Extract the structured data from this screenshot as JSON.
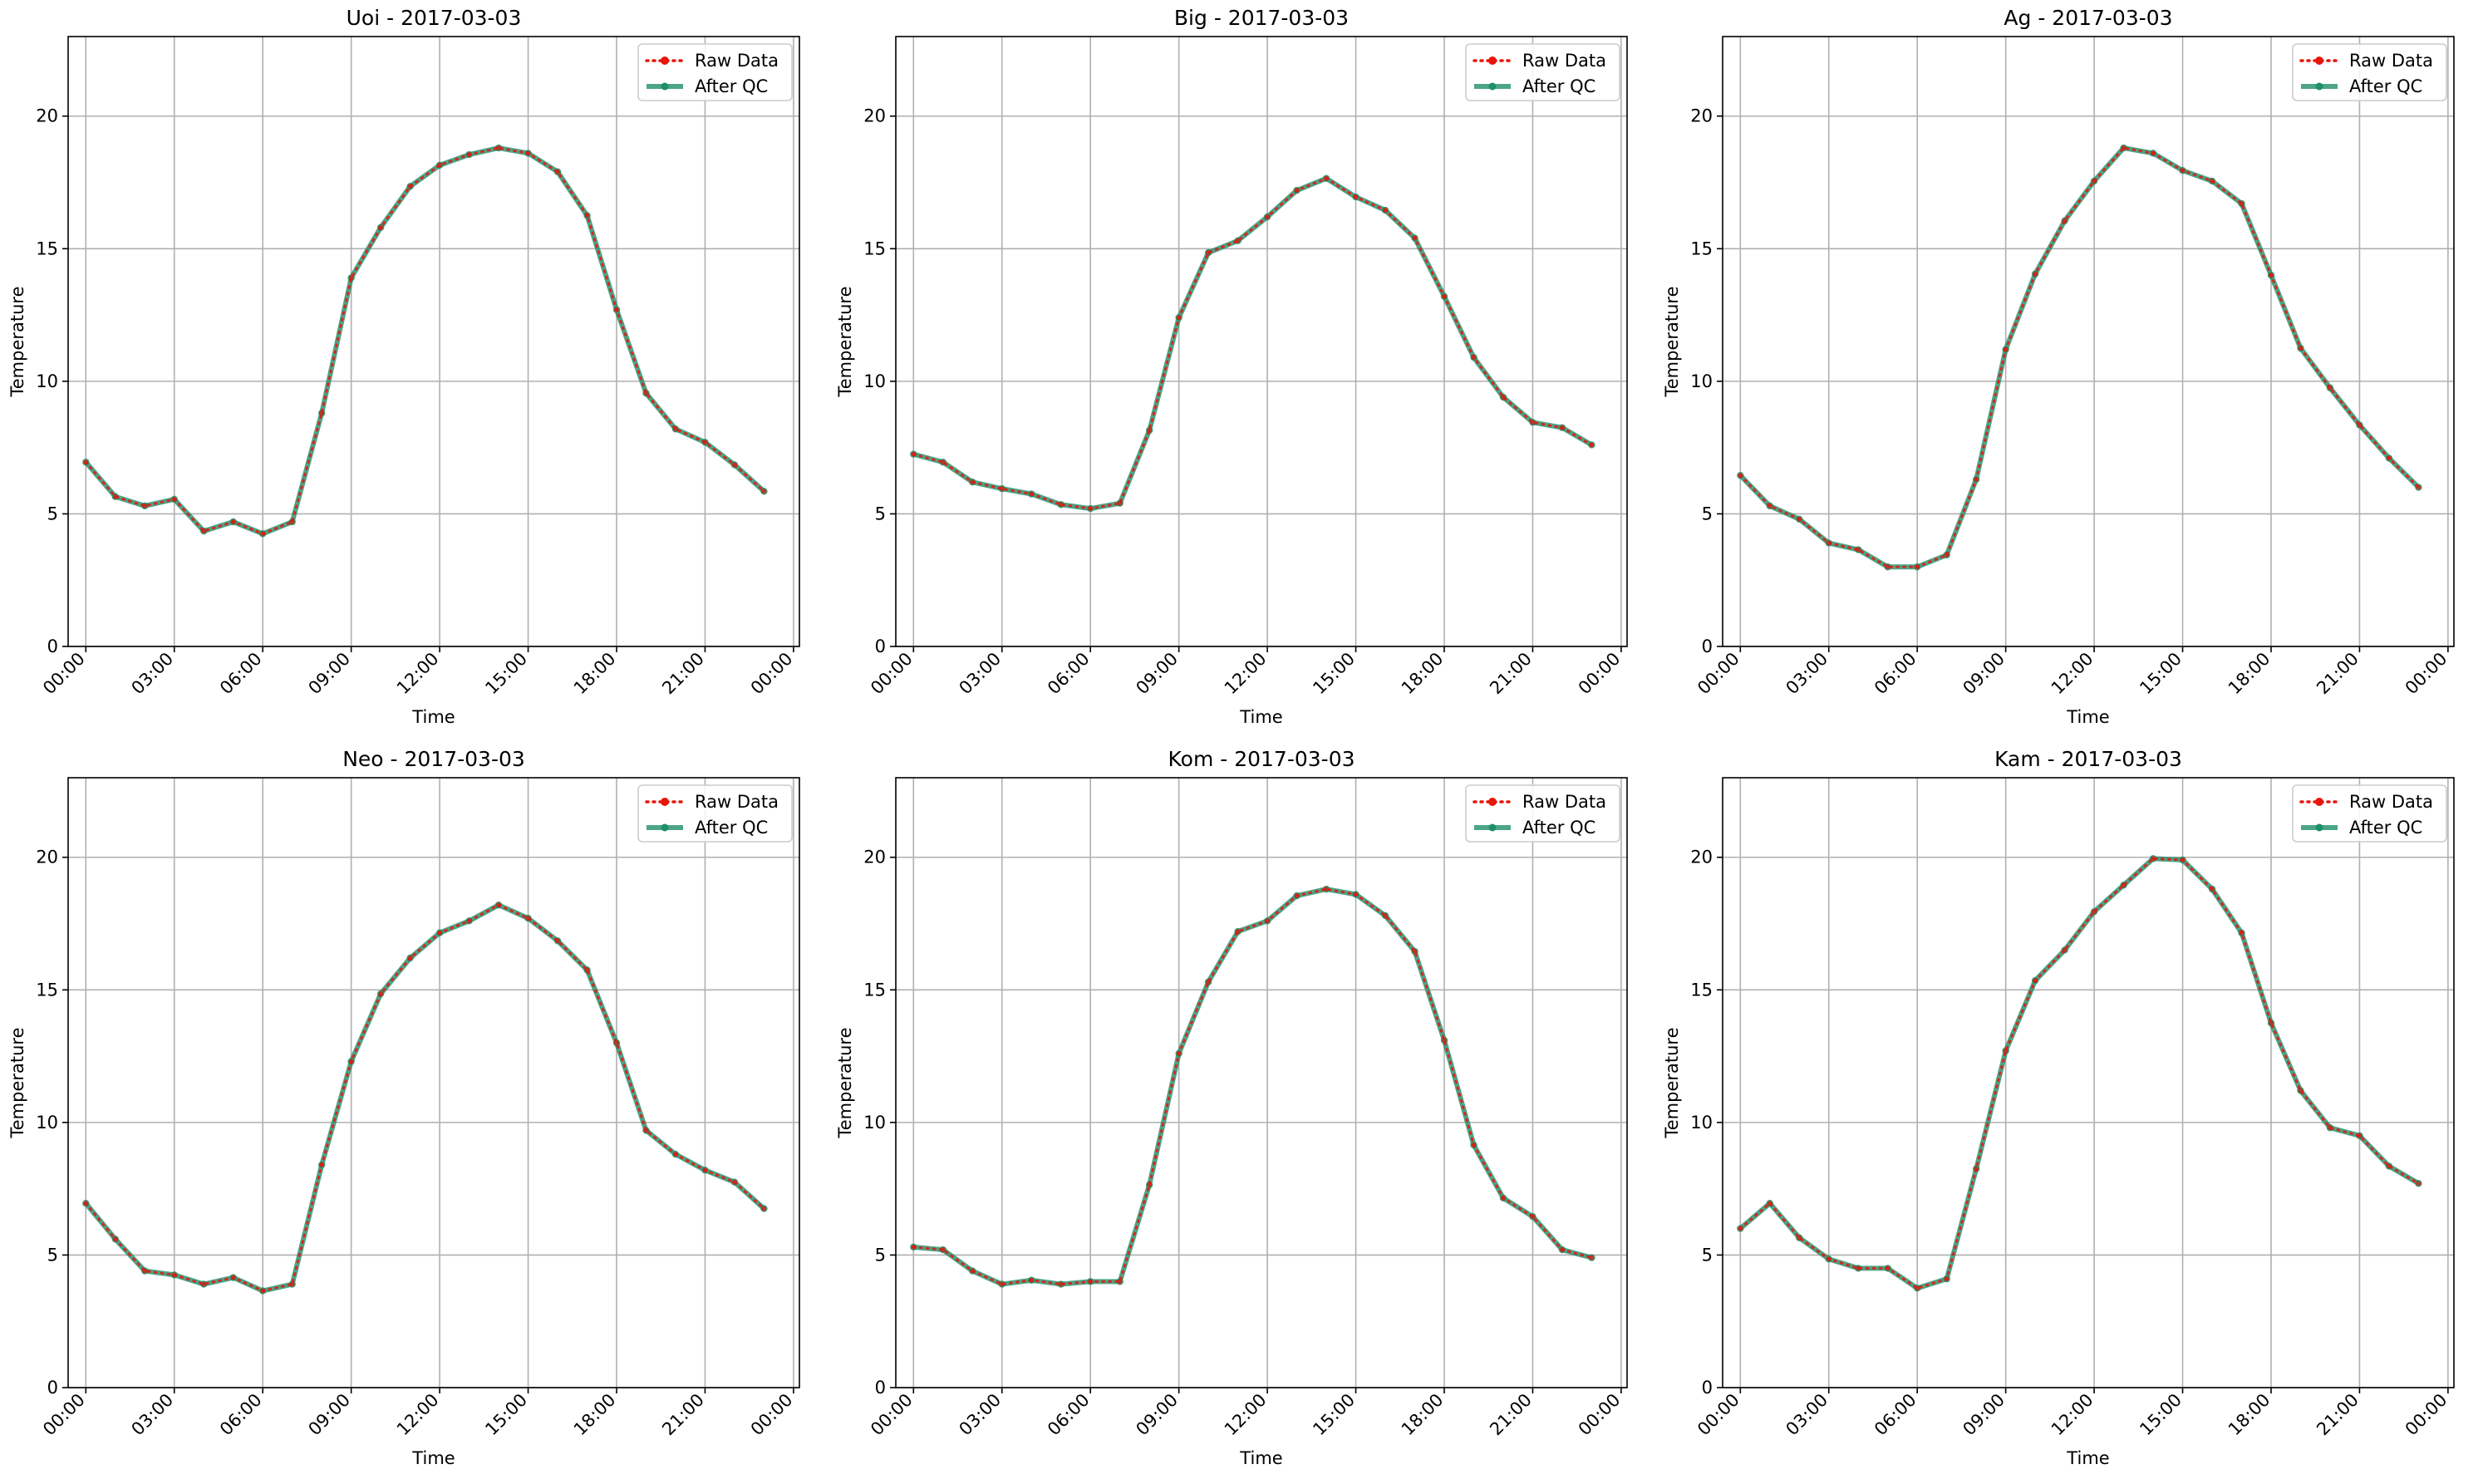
{
  "chart_data": [
    {
      "type": "line",
      "title": "Uoi - 2017-03-03",
      "xlabel": "Time",
      "ylabel": "Temperature",
      "ylim": [
        0,
        23
      ],
      "xlim_hours": [
        -0.6,
        24.2
      ],
      "yticks": [
        0,
        5,
        10,
        15,
        20
      ],
      "xticks": [
        "00:00",
        "03:00",
        "06:00",
        "09:00",
        "12:00",
        "15:00",
        "18:00",
        "21:00",
        "00:00"
      ],
      "grid": true,
      "legend_position": "top-right",
      "x": [
        "00:00",
        "01:00",
        "02:00",
        "03:00",
        "04:00",
        "05:00",
        "06:00",
        "07:00",
        "08:00",
        "09:00",
        "10:00",
        "11:00",
        "12:00",
        "13:00",
        "14:00",
        "15:00",
        "16:00",
        "17:00",
        "18:00",
        "19:00",
        "20:00",
        "21:00",
        "22:00",
        "23:00"
      ],
      "series": [
        {
          "name": "Raw Data",
          "color": "#e8150b",
          "style": "dotted",
          "values": [
            6.95,
            5.65,
            5.3,
            5.55,
            4.35,
            4.7,
            4.25,
            4.7,
            8.8,
            13.9,
            15.8,
            17.35,
            18.15,
            18.55,
            18.8,
            18.6,
            17.9,
            16.25,
            12.7,
            9.55,
            8.2,
            7.7,
            6.85,
            5.85
          ]
        },
        {
          "name": "After QC",
          "color": "#1f8f6b",
          "style": "solid",
          "values": [
            6.95,
            5.65,
            5.3,
            5.55,
            4.35,
            4.7,
            4.25,
            4.7,
            8.8,
            13.9,
            15.8,
            17.35,
            18.15,
            18.55,
            18.8,
            18.6,
            17.9,
            16.25,
            12.7,
            9.55,
            8.2,
            7.7,
            6.85,
            5.85
          ]
        }
      ]
    },
    {
      "type": "line",
      "title": "Big - 2017-03-03",
      "xlabel": "Time",
      "ylabel": "Temperature",
      "ylim": [
        0,
        23
      ],
      "xlim_hours": [
        -0.6,
        24.2
      ],
      "yticks": [
        0,
        5,
        10,
        15,
        20
      ],
      "xticks": [
        "00:00",
        "03:00",
        "06:00",
        "09:00",
        "12:00",
        "15:00",
        "18:00",
        "21:00",
        "00:00"
      ],
      "grid": true,
      "legend_position": "top-right",
      "x": [
        "00:00",
        "01:00",
        "02:00",
        "03:00",
        "04:00",
        "05:00",
        "06:00",
        "07:00",
        "08:00",
        "09:00",
        "10:00",
        "11:00",
        "12:00",
        "13:00",
        "14:00",
        "15:00",
        "16:00",
        "17:00",
        "18:00",
        "19:00",
        "20:00",
        "21:00",
        "22:00",
        "23:00"
      ],
      "series": [
        {
          "name": "Raw Data",
          "color": "#e8150b",
          "style": "dotted",
          "values": [
            7.25,
            6.95,
            6.2,
            5.95,
            5.75,
            5.35,
            5.2,
            5.4,
            8.15,
            12.4,
            14.85,
            15.3,
            16.2,
            17.2,
            17.65,
            16.95,
            16.45,
            15.4,
            13.2,
            10.9,
            9.4,
            8.45,
            8.25,
            7.6
          ]
        },
        {
          "name": "After QC",
          "color": "#1f8f6b",
          "style": "solid",
          "values": [
            7.25,
            6.95,
            6.2,
            5.95,
            5.75,
            5.35,
            5.2,
            5.4,
            8.15,
            12.4,
            14.85,
            15.3,
            16.2,
            17.2,
            17.65,
            16.95,
            16.45,
            15.4,
            13.2,
            10.9,
            9.4,
            8.45,
            8.25,
            7.6
          ]
        }
      ]
    },
    {
      "type": "line",
      "title": "Ag - 2017-03-03",
      "xlabel": "Time",
      "ylabel": "Temperature",
      "ylim": [
        0,
        23
      ],
      "xlim_hours": [
        -0.6,
        24.2
      ],
      "yticks": [
        0,
        5,
        10,
        15,
        20
      ],
      "xticks": [
        "00:00",
        "03:00",
        "06:00",
        "09:00",
        "12:00",
        "15:00",
        "18:00",
        "21:00",
        "00:00"
      ],
      "grid": true,
      "legend_position": "top-right",
      "x": [
        "00:00",
        "01:00",
        "02:00",
        "03:00",
        "04:00",
        "05:00",
        "06:00",
        "07:00",
        "08:00",
        "09:00",
        "10:00",
        "11:00",
        "12:00",
        "13:00",
        "14:00",
        "15:00",
        "16:00",
        "17:00",
        "18:00",
        "19:00",
        "20:00",
        "21:00",
        "22:00",
        "23:00"
      ],
      "series": [
        {
          "name": "Raw Data",
          "color": "#e8150b",
          "style": "dotted",
          "values": [
            6.45,
            5.3,
            4.8,
            3.9,
            3.65,
            3.0,
            3.0,
            3.45,
            6.3,
            11.2,
            14.05,
            16.05,
            17.55,
            18.8,
            18.6,
            17.95,
            17.55,
            16.7,
            14.0,
            11.25,
            9.75,
            8.35,
            7.1,
            6.0
          ]
        },
        {
          "name": "After QC",
          "color": "#1f8f6b",
          "style": "solid",
          "values": [
            6.45,
            5.3,
            4.8,
            3.9,
            3.65,
            3.0,
            3.0,
            3.45,
            6.3,
            11.2,
            14.05,
            16.05,
            17.55,
            18.8,
            18.6,
            17.95,
            17.55,
            16.7,
            14.0,
            11.25,
            9.75,
            8.35,
            7.1,
            6.0
          ]
        }
      ]
    },
    {
      "type": "line",
      "title": "Neo - 2017-03-03",
      "xlabel": "Time",
      "ylabel": "Temperature",
      "ylim": [
        0,
        23
      ],
      "xlim_hours": [
        -0.6,
        24.2
      ],
      "yticks": [
        0,
        5,
        10,
        15,
        20
      ],
      "xticks": [
        "00:00",
        "03:00",
        "06:00",
        "09:00",
        "12:00",
        "15:00",
        "18:00",
        "21:00",
        "00:00"
      ],
      "grid": true,
      "legend_position": "top-right",
      "x": [
        "00:00",
        "01:00",
        "02:00",
        "03:00",
        "04:00",
        "05:00",
        "06:00",
        "07:00",
        "08:00",
        "09:00",
        "10:00",
        "11:00",
        "12:00",
        "13:00",
        "14:00",
        "15:00",
        "16:00",
        "17:00",
        "18:00",
        "19:00",
        "20:00",
        "21:00",
        "22:00",
        "23:00"
      ],
      "series": [
        {
          "name": "Raw Data",
          "color": "#e8150b",
          "style": "dotted",
          "values": [
            6.95,
            5.6,
            4.4,
            4.25,
            3.9,
            4.15,
            3.65,
            3.9,
            8.4,
            12.3,
            14.85,
            16.2,
            17.15,
            17.6,
            18.2,
            17.7,
            16.85,
            15.75,
            13.0,
            9.7,
            8.8,
            8.2,
            7.75,
            6.75
          ]
        },
        {
          "name": "After QC",
          "color": "#1f8f6b",
          "style": "solid",
          "values": [
            6.95,
            5.6,
            4.4,
            4.25,
            3.9,
            4.15,
            3.65,
            3.9,
            8.4,
            12.3,
            14.85,
            16.2,
            17.15,
            17.6,
            18.2,
            17.7,
            16.85,
            15.75,
            13.0,
            9.7,
            8.8,
            8.2,
            7.75,
            6.75
          ]
        }
      ]
    },
    {
      "type": "line",
      "title": "Kom - 2017-03-03",
      "xlabel": "Time",
      "ylabel": "Temperature",
      "ylim": [
        0,
        23
      ],
      "xlim_hours": [
        -0.6,
        24.2
      ],
      "yticks": [
        0,
        5,
        10,
        15,
        20
      ],
      "xticks": [
        "00:00",
        "03:00",
        "06:00",
        "09:00",
        "12:00",
        "15:00",
        "18:00",
        "21:00",
        "00:00"
      ],
      "grid": true,
      "legend_position": "top-right",
      "x": [
        "00:00",
        "01:00",
        "02:00",
        "03:00",
        "04:00",
        "05:00",
        "06:00",
        "07:00",
        "08:00",
        "09:00",
        "10:00",
        "11:00",
        "12:00",
        "13:00",
        "14:00",
        "15:00",
        "16:00",
        "17:00",
        "18:00",
        "19:00",
        "20:00",
        "21:00",
        "22:00",
        "23:00"
      ],
      "series": [
        {
          "name": "Raw Data",
          "color": "#e8150b",
          "style": "dotted",
          "values": [
            5.3,
            5.2,
            4.4,
            3.9,
            4.05,
            3.9,
            4.0,
            4.0,
            7.65,
            12.6,
            15.3,
            17.2,
            17.6,
            18.55,
            18.8,
            18.6,
            17.8,
            16.45,
            13.1,
            9.15,
            7.15,
            6.45,
            5.2,
            4.9
          ]
        },
        {
          "name": "After QC",
          "color": "#1f8f6b",
          "style": "solid",
          "values": [
            5.3,
            5.2,
            4.4,
            3.9,
            4.05,
            3.9,
            4.0,
            4.0,
            7.65,
            12.6,
            15.3,
            17.2,
            17.6,
            18.55,
            18.8,
            18.6,
            17.8,
            16.45,
            13.1,
            9.15,
            7.15,
            6.45,
            5.2,
            4.9
          ]
        }
      ]
    },
    {
      "type": "line",
      "title": "Kam - 2017-03-03",
      "xlabel": "Time",
      "ylabel": "Temperature",
      "ylim": [
        0,
        23
      ],
      "xlim_hours": [
        -0.6,
        24.2
      ],
      "yticks": [
        0,
        5,
        10,
        15,
        20
      ],
      "xticks": [
        "00:00",
        "03:00",
        "06:00",
        "09:00",
        "12:00",
        "15:00",
        "18:00",
        "21:00",
        "00:00"
      ],
      "grid": true,
      "legend_position": "top-right",
      "x": [
        "00:00",
        "01:00",
        "02:00",
        "03:00",
        "04:00",
        "05:00",
        "06:00",
        "07:00",
        "08:00",
        "09:00",
        "10:00",
        "11:00",
        "12:00",
        "13:00",
        "14:00",
        "15:00",
        "16:00",
        "17:00",
        "18:00",
        "19:00",
        "20:00",
        "21:00",
        "22:00",
        "23:00"
      ],
      "series": [
        {
          "name": "Raw Data",
          "color": "#e8150b",
          "style": "dotted",
          "values": [
            6.0,
            6.95,
            5.65,
            4.85,
            4.5,
            4.5,
            3.75,
            4.1,
            8.25,
            12.7,
            15.35,
            16.5,
            17.95,
            18.95,
            19.95,
            19.9,
            18.8,
            17.15,
            13.75,
            11.2,
            9.8,
            9.5,
            8.35,
            7.7
          ]
        },
        {
          "name": "After QC",
          "color": "#1f8f6b",
          "style": "solid",
          "values": [
            6.0,
            6.95,
            5.65,
            4.85,
            4.5,
            4.5,
            3.75,
            4.1,
            8.25,
            12.7,
            15.35,
            16.5,
            17.95,
            18.95,
            19.95,
            19.9,
            18.8,
            17.15,
            13.75,
            11.2,
            9.8,
            9.5,
            8.35,
            7.7
          ]
        }
      ]
    }
  ]
}
